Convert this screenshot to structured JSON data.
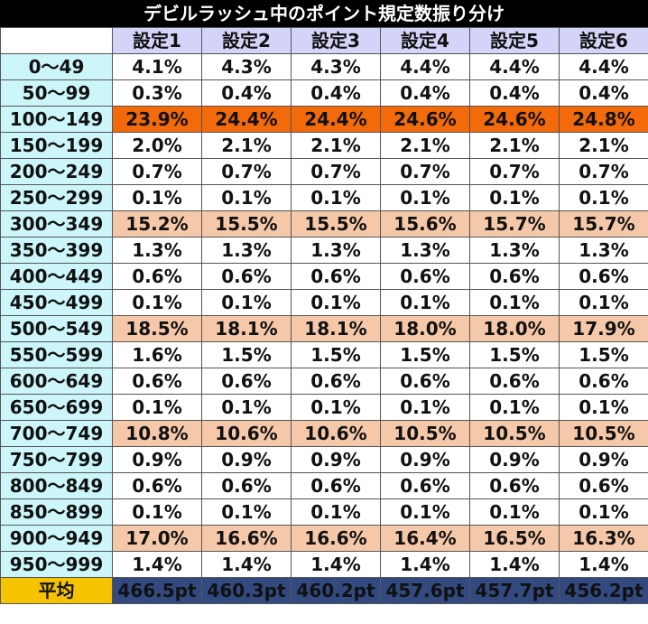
{
  "title": "デビルラッシュ中のポイント規定数振り分け",
  "headers": [
    "設定1",
    "設定2",
    "設定3",
    "設定4",
    "設定5",
    "設定6"
  ],
  "rows": [
    {
      "range": "0～49",
      "values": [
        "4.1%",
        "4.3%",
        "4.3%",
        "4.4%",
        "4.4%",
        "4.4%"
      ]
    },
    {
      "range": "50～99",
      "values": [
        "0.3%",
        "0.4%",
        "0.4%",
        "0.4%",
        "0.4%",
        "0.4%"
      ]
    },
    {
      "range": "100～149",
      "highlight": "strong",
      "values": [
        "23.9%",
        "24.4%",
        "24.4%",
        "24.6%",
        "24.6%",
        "24.8%"
      ]
    },
    {
      "range": "150～199",
      "values": [
        "2.0%",
        "2.1%",
        "2.1%",
        "2.1%",
        "2.1%",
        "2.1%"
      ]
    },
    {
      "range": "200～249",
      "values": [
        "0.7%",
        "0.7%",
        "0.7%",
        "0.7%",
        "0.7%",
        "0.7%"
      ]
    },
    {
      "range": "250～299",
      "values": [
        "0.1%",
        "0.1%",
        "0.1%",
        "0.1%",
        "0.1%",
        "0.1%"
      ]
    },
    {
      "range": "300～349",
      "highlight": "light",
      "values": [
        "15.2%",
        "15.5%",
        "15.5%",
        "15.6%",
        "15.7%",
        "15.7%"
      ]
    },
    {
      "range": "350～399",
      "values": [
        "1.3%",
        "1.3%",
        "1.3%",
        "1.3%",
        "1.3%",
        "1.3%"
      ]
    },
    {
      "range": "400～449",
      "values": [
        "0.6%",
        "0.6%",
        "0.6%",
        "0.6%",
        "0.6%",
        "0.6%"
      ]
    },
    {
      "range": "450～499",
      "values": [
        "0.1%",
        "0.1%",
        "0.1%",
        "0.1%",
        "0.1%",
        "0.1%"
      ]
    },
    {
      "range": "500～549",
      "highlight": "light",
      "values": [
        "18.5%",
        "18.1%",
        "18.1%",
        "18.0%",
        "18.0%",
        "17.9%"
      ]
    },
    {
      "range": "550～599",
      "values": [
        "1.6%",
        "1.5%",
        "1.5%",
        "1.5%",
        "1.5%",
        "1.5%"
      ]
    },
    {
      "range": "600～649",
      "values": [
        "0.6%",
        "0.6%",
        "0.6%",
        "0.6%",
        "0.6%",
        "0.6%"
      ]
    },
    {
      "range": "650～699",
      "values": [
        "0.1%",
        "0.1%",
        "0.1%",
        "0.1%",
        "0.1%",
        "0.1%"
      ]
    },
    {
      "range": "700～749",
      "highlight": "light",
      "values": [
        "10.8%",
        "10.6%",
        "10.6%",
        "10.5%",
        "10.5%",
        "10.5%"
      ]
    },
    {
      "range": "750～799",
      "values": [
        "0.9%",
        "0.9%",
        "0.9%",
        "0.9%",
        "0.9%",
        "0.9%"
      ]
    },
    {
      "range": "800～849",
      "values": [
        "0.6%",
        "0.6%",
        "0.6%",
        "0.6%",
        "0.6%",
        "0.6%"
      ]
    },
    {
      "range": "850～899",
      "values": [
        "0.1%",
        "0.1%",
        "0.1%",
        "0.1%",
        "0.1%",
        "0.1%"
      ]
    },
    {
      "range": "900～949",
      "highlight": "light",
      "values": [
        "17.0%",
        "16.6%",
        "16.6%",
        "16.4%",
        "16.5%",
        "16.3%"
      ]
    },
    {
      "range": "950～999",
      "values": [
        "1.4%",
        "1.4%",
        "1.4%",
        "1.4%",
        "1.4%",
        "1.4%"
      ]
    }
  ],
  "average": {
    "label": "平均",
    "values": [
      "466.5pt",
      "460.3pt",
      "460.2pt",
      "457.6pt",
      "457.7pt",
      "456.2pt"
    ]
  },
  "colors": {
    "title_bg": "#000000",
    "header_bg": "#d4d4f8",
    "range_bg": "#ccf6fa",
    "highlight_strong": "#f26a0a",
    "highlight_light": "#f6c8aa",
    "avg_label_bg": "#f5c300",
    "avg_value_bg": "#334a80"
  }
}
